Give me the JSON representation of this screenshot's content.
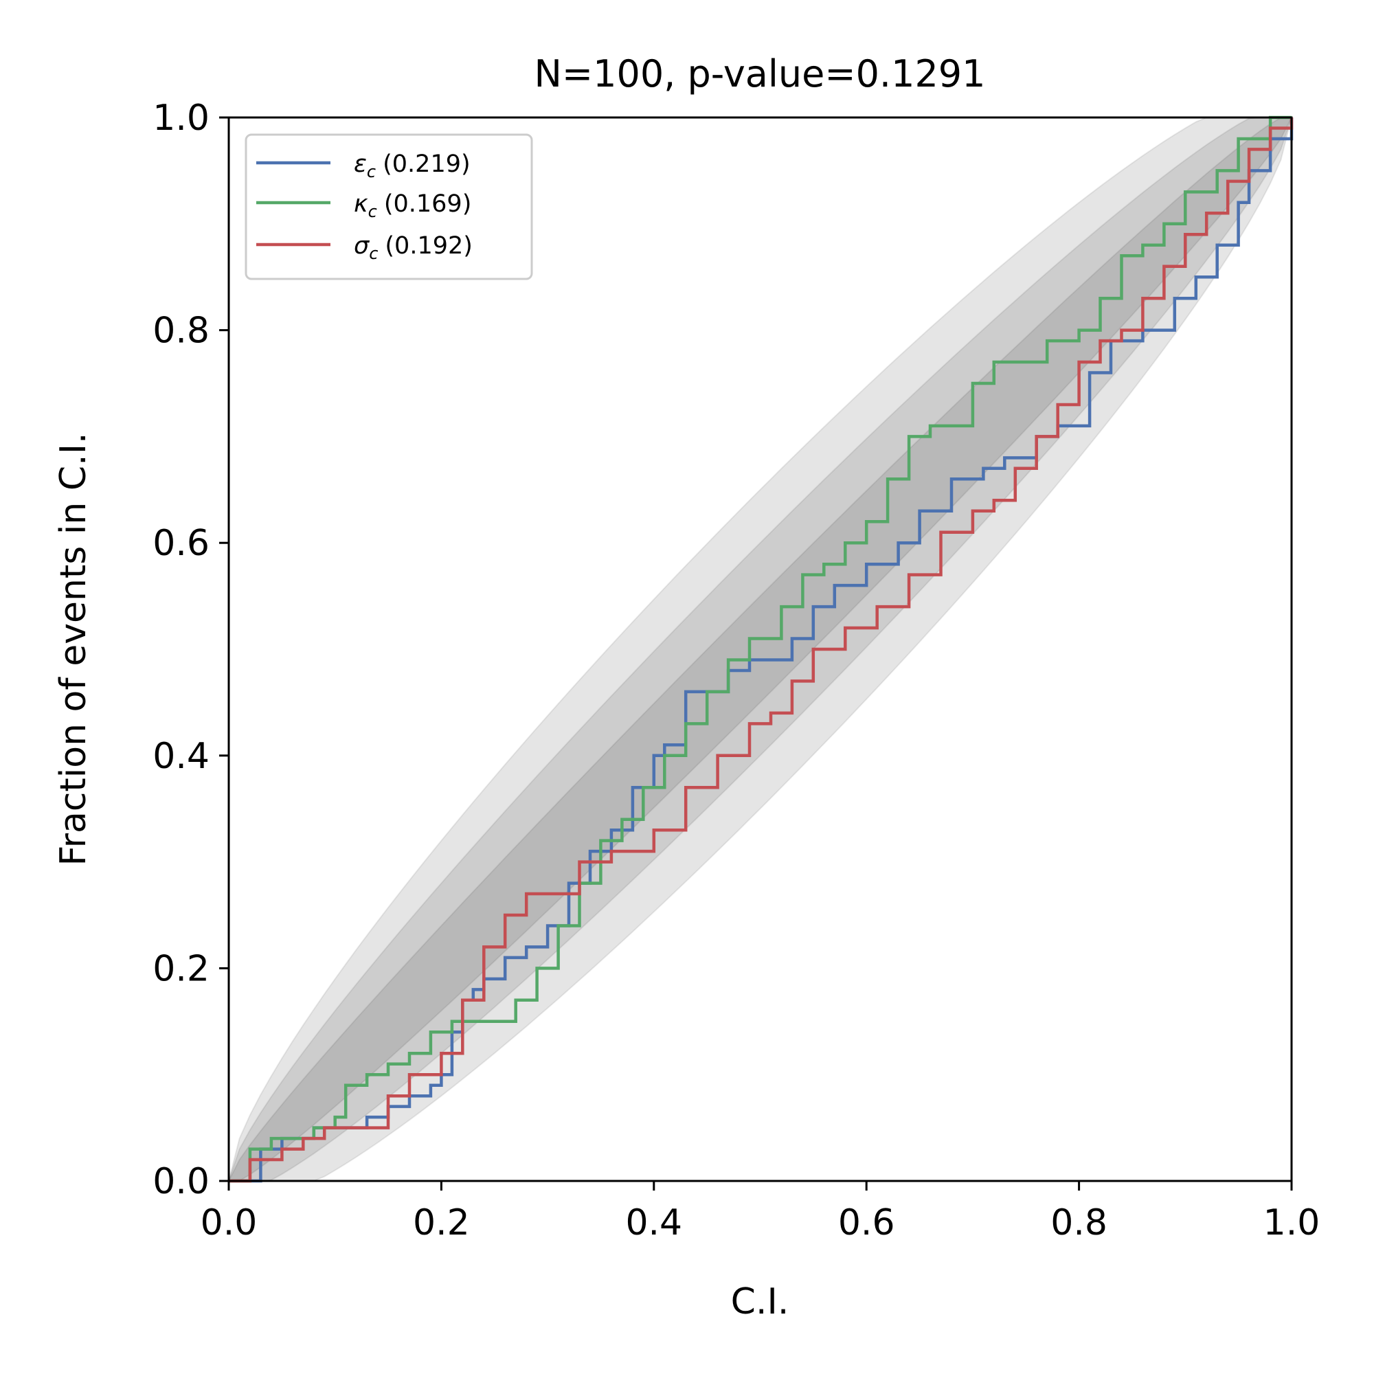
{
  "chart_data": {
    "type": "line",
    "title": "N=100, p-value=0.1291",
    "xlabel": "C.I.",
    "ylabel": "Fraction of events in C.I.",
    "xlim": [
      0,
      1
    ],
    "ylim": [
      0,
      1
    ],
    "xticks": [
      "0.0",
      "0.2",
      "0.4",
      "0.6",
      "0.8",
      "1.0"
    ],
    "yticks": [
      "0.0",
      "0.2",
      "0.4",
      "0.6",
      "0.8",
      "1.0"
    ],
    "grid": false,
    "legend_position": "top-left",
    "band_color": "#000000",
    "series": [
      {
        "name": "εc (0.219)",
        "symbol": "ε",
        "subscript": "c",
        "pvalue": "(0.219)",
        "color": "#4c72b0",
        "x": [
          0.0,
          0.03,
          0.05,
          0.08,
          0.1,
          0.13,
          0.15,
          0.17,
          0.19,
          0.2,
          0.21,
          0.22,
          0.23,
          0.24,
          0.26,
          0.28,
          0.3,
          0.32,
          0.34,
          0.36,
          0.38,
          0.4,
          0.41,
          0.43,
          0.45,
          0.47,
          0.49,
          0.51,
          0.53,
          0.55,
          0.57,
          0.6,
          0.63,
          0.65,
          0.68,
          0.71,
          0.73,
          0.76,
          0.78,
          0.81,
          0.83,
          0.86,
          0.89,
          0.91,
          0.93,
          0.95,
          0.96,
          0.98,
          1.0
        ],
        "y": [
          0.0,
          0.03,
          0.04,
          0.05,
          0.05,
          0.06,
          0.07,
          0.08,
          0.09,
          0.1,
          0.14,
          0.17,
          0.18,
          0.19,
          0.21,
          0.22,
          0.24,
          0.28,
          0.31,
          0.33,
          0.37,
          0.4,
          0.41,
          0.46,
          0.46,
          0.48,
          0.49,
          0.49,
          0.51,
          0.54,
          0.56,
          0.58,
          0.6,
          0.63,
          0.66,
          0.67,
          0.68,
          0.7,
          0.71,
          0.76,
          0.79,
          0.8,
          0.83,
          0.85,
          0.88,
          0.92,
          0.95,
          0.98,
          1.0
        ]
      },
      {
        "name": "κc (0.169)",
        "symbol": "κ",
        "subscript": "c",
        "pvalue": "(0.169)",
        "color": "#55a868",
        "x": [
          0.0,
          0.02,
          0.04,
          0.08,
          0.1,
          0.11,
          0.13,
          0.15,
          0.17,
          0.19,
          0.21,
          0.24,
          0.27,
          0.29,
          0.31,
          0.33,
          0.35,
          0.37,
          0.39,
          0.41,
          0.43,
          0.45,
          0.47,
          0.49,
          0.52,
          0.54,
          0.56,
          0.58,
          0.6,
          0.62,
          0.64,
          0.66,
          0.7,
          0.72,
          0.74,
          0.77,
          0.8,
          0.82,
          0.84,
          0.86,
          0.88,
          0.9,
          0.93,
          0.95,
          0.98,
          1.0
        ],
        "y": [
          0.0,
          0.03,
          0.04,
          0.05,
          0.06,
          0.09,
          0.1,
          0.11,
          0.12,
          0.14,
          0.15,
          0.15,
          0.17,
          0.2,
          0.24,
          0.28,
          0.32,
          0.34,
          0.37,
          0.4,
          0.43,
          0.46,
          0.49,
          0.51,
          0.54,
          0.57,
          0.58,
          0.6,
          0.62,
          0.66,
          0.7,
          0.71,
          0.75,
          0.77,
          0.77,
          0.79,
          0.8,
          0.83,
          0.87,
          0.88,
          0.9,
          0.93,
          0.95,
          0.98,
          1.0,
          1.0
        ]
      },
      {
        "name": "σc (0.192)",
        "symbol": "σ",
        "subscript": "c",
        "pvalue": "(0.192)",
        "color": "#c44e52",
        "x": [
          0.0,
          0.02,
          0.05,
          0.07,
          0.09,
          0.11,
          0.15,
          0.17,
          0.2,
          0.22,
          0.24,
          0.26,
          0.28,
          0.31,
          0.33,
          0.36,
          0.4,
          0.43,
          0.46,
          0.49,
          0.51,
          0.53,
          0.55,
          0.58,
          0.61,
          0.64,
          0.67,
          0.7,
          0.72,
          0.74,
          0.76,
          0.78,
          0.8,
          0.82,
          0.84,
          0.86,
          0.88,
          0.9,
          0.92,
          0.94,
          0.96,
          0.98,
          1.0
        ],
        "y": [
          0.0,
          0.02,
          0.03,
          0.04,
          0.05,
          0.05,
          0.08,
          0.1,
          0.12,
          0.17,
          0.22,
          0.25,
          0.27,
          0.27,
          0.3,
          0.31,
          0.33,
          0.37,
          0.4,
          0.43,
          0.44,
          0.47,
          0.5,
          0.52,
          0.54,
          0.57,
          0.61,
          0.63,
          0.64,
          0.67,
          0.7,
          0.73,
          0.77,
          0.79,
          0.8,
          0.83,
          0.86,
          0.89,
          0.91,
          0.94,
          0.97,
          0.99,
          1.0
        ]
      }
    ]
  }
}
